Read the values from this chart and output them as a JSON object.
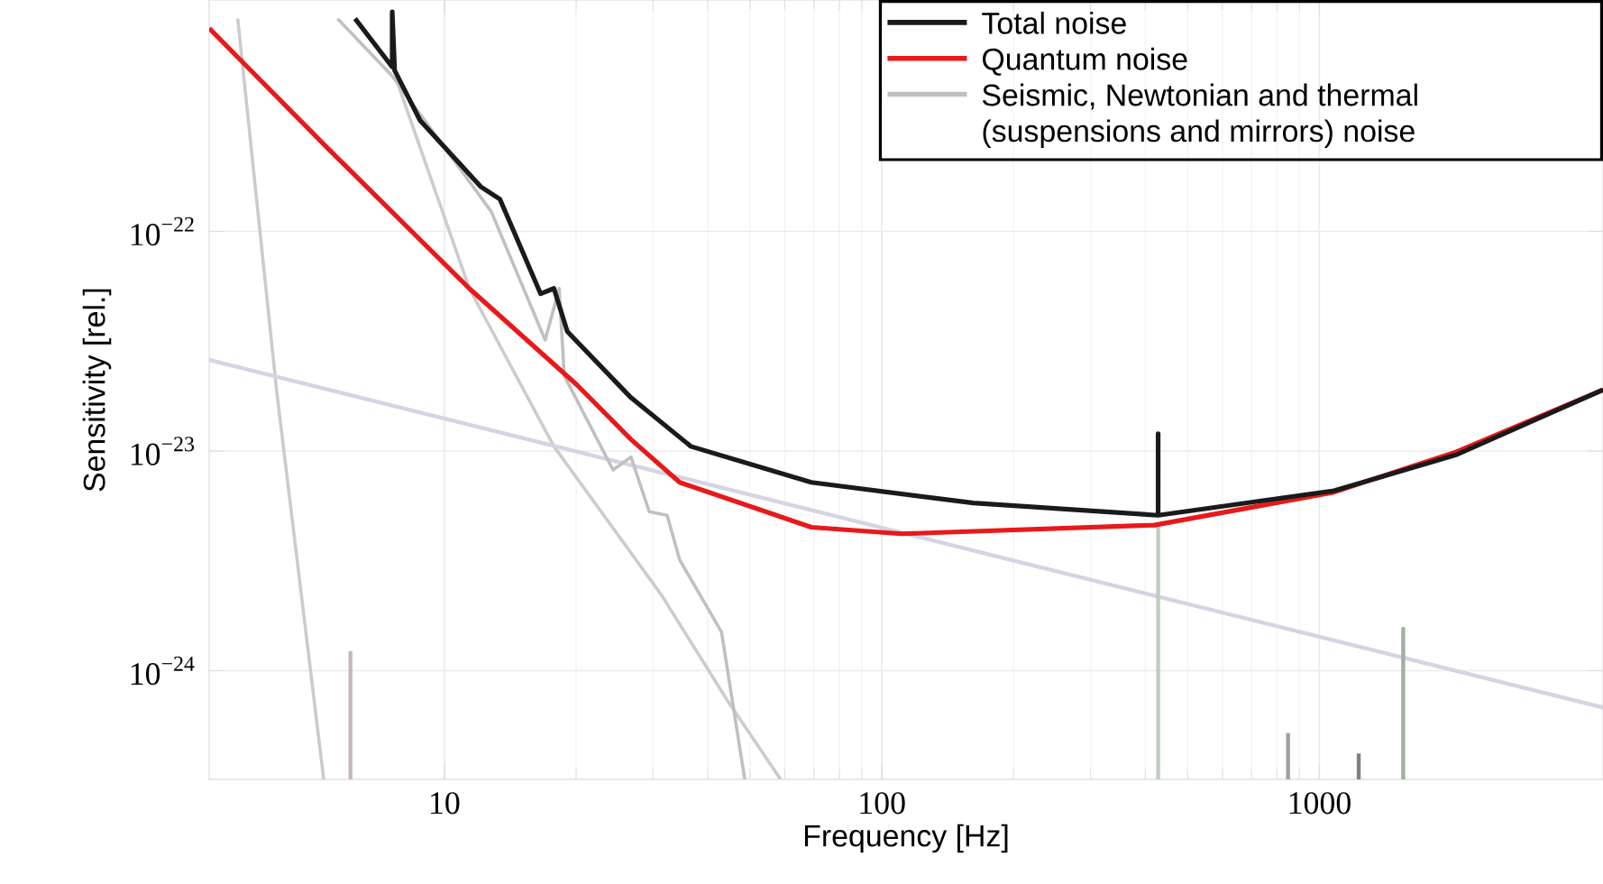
{
  "chart_data": {
    "type": "line",
    "xlabel": "Frequency [Hz]",
    "ylabel": "Sensitivity [rel.]",
    "log": "xy",
    "grid": true,
    "legend": "top right",
    "xlim": [
      2.9,
      4450
    ],
    "ylim": [
      3.2e-25,
      1.13e-21
    ],
    "xticks": [
      10,
      100,
      1000
    ],
    "yticks": [
      {
        "value": 1e-22,
        "label": "10$^{−22}$"
      },
      {
        "value": 1e-23,
        "label": "10$^{−23}$"
      },
      {
        "value": 1e-24,
        "label": "10$^{−24}$"
      }
    ],
    "series": [
      {
        "name": "Total noise",
        "color": "#1a1a1a",
        "x": [
          6.25,
          7.6,
          7.6,
          7.7,
          8.8,
          12.1,
          13.4,
          16.6,
          17.8,
          19.1,
          26.7,
          36.6,
          69,
          162,
          428,
          428,
          428,
          1080,
          2050,
          4450
        ],
        "values": [
          9.3e-22,
          5.6e-22,
          1e-21,
          5.4e-22,
          3.2e-22,
          1.6e-22,
          1.4e-22,
          5.2e-23,
          5.5e-23,
          3.5e-23,
          1.75e-23,
          1.05e-23,
          7.2e-24,
          5.8e-24,
          5.1e-24,
          1.2e-23,
          5.1e-24,
          6.6e-24,
          9.6e-24,
          1.9e-23
        ]
      },
      {
        "name": "Quantum noise",
        "color": "#e8191a",
        "x": [
          2.9,
          5.4,
          11.4,
          20.1,
          26.7,
          34.5,
          69,
          111,
          420,
          1080,
          2050,
          4450
        ],
        "values": [
          8.4e-22,
          2.4e-22,
          5.5e-23,
          2e-23,
          1.13e-23,
          7.2e-24,
          4.5e-24,
          4.2e-24,
          4.6e-24,
          6.5e-24,
          9.9e-24,
          1.9e-23
        ]
      },
      {
        "name": "Seismic, Newtonian and thermal (suspensions and mirrors) noise",
        "color": "#c0c0c0",
        "x": [
          5.7,
          7.6,
          12.8,
          17.0,
          18.3,
          18.8,
          24.3,
          26.7,
          29.4,
          32.3,
          34.5,
          43,
          48.6
        ],
        "values": [
          9.3e-22,
          5.1e-22,
          1.23e-22,
          3.2e-23,
          5.5e-23,
          2.2e-23,
          8.2e-24,
          9.4e-24,
          5.3e-24,
          5.1e-24,
          3.2e-24,
          1.5e-24,
          3.2e-25
        ]
      },
      {
        "color": "#cccccc",
        "x": [
          3.37,
          4.14,
          5.3
        ],
        "values": [
          9.3e-22,
          1.85e-23,
          3.2e-25
        ]
      },
      {
        "color": "#cccccc",
        "x": [
          7.8,
          11.4,
          17.8,
          31.4,
          44.2,
          58.7
        ],
        "values": [
          4.8e-22,
          5.5e-23,
          1.05e-23,
          2.2e-24,
          7.4e-25,
          3.2e-25
        ]
      },
      {
        "color": "#d4d4e4",
        "x": [
          2.9,
          4450
        ],
        "values": [
          2.6e-23,
          6.8e-25
        ]
      },
      {
        "color": "#c8b8b8",
        "x": [
          6.1,
          6.1
        ],
        "values": [
          3.2e-25,
          1.23e-24
        ]
      },
      {
        "color": "#c0ccc0",
        "x": [
          428,
          428
        ],
        "values": [
          3.2e-25,
          4.6e-24
        ]
      },
      {
        "color": "#a0a0a0",
        "x": [
          848,
          848
        ],
        "values": [
          3.2e-25,
          5.2e-25
        ]
      },
      {
        "color": "#808080",
        "x": [
          1230,
          1230
        ],
        "values": [
          3.2e-25,
          4.2e-25
        ]
      },
      {
        "color": "#a0b0a0",
        "x": [
          1555,
          1555
        ],
        "values": [
          3.2e-25,
          1.58e-24
        ]
      }
    ]
  }
}
